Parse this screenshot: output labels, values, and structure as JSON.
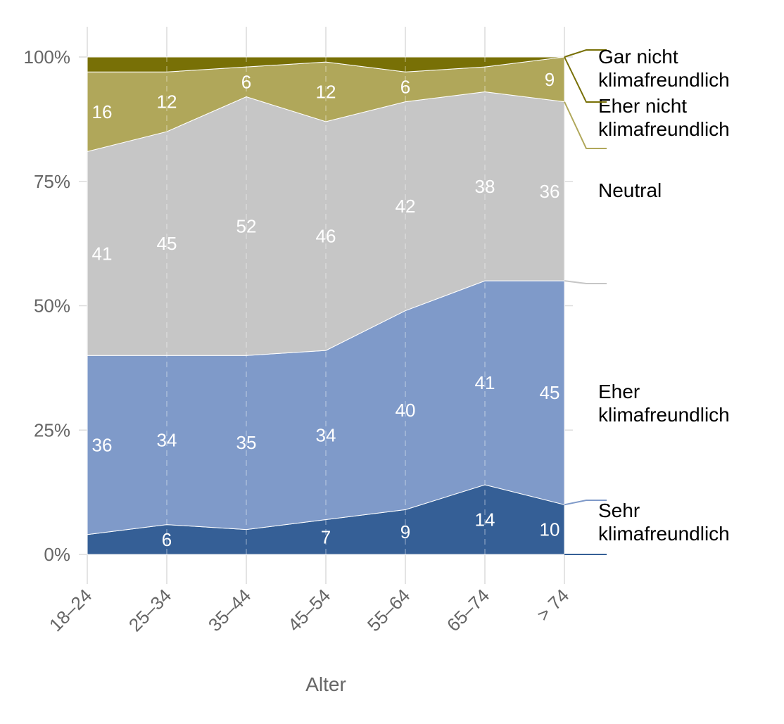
{
  "chart_data": {
    "type": "area",
    "stacked": true,
    "xlabel": "Alter",
    "ylabel": "",
    "categories": [
      "18–24",
      "25–34",
      "35–44",
      "45–54",
      "55–64",
      "65–74",
      "> 74"
    ],
    "ylim": [
      0,
      100
    ],
    "yticks": [
      "0%",
      "25%",
      "50%",
      "75%",
      "100%"
    ],
    "grid": true,
    "legend_placement": "right (direct labels)",
    "series": [
      {
        "name": "Sehr klimafreundlich",
        "lines": [
          "Sehr",
          "klimafreundlich"
        ],
        "color": "#355f96",
        "values": [
          4,
          6,
          5,
          7,
          9,
          14,
          10
        ],
        "labels": [
          "",
          "6",
          "",
          "7",
          "9",
          "14",
          "10"
        ]
      },
      {
        "name": "Eher klimafreundlich",
        "lines": [
          "Eher",
          "klimafreundlich"
        ],
        "color": "#7f9ac9",
        "values": [
          36,
          34,
          35,
          34,
          40,
          41,
          45
        ],
        "labels": [
          "36",
          "34",
          "35",
          "34",
          "40",
          "41",
          "45"
        ]
      },
      {
        "name": "Neutral",
        "lines": [
          "Neutral"
        ],
        "color": "#c6c6c6",
        "values": [
          41,
          45,
          52,
          46,
          42,
          38,
          36
        ],
        "labels": [
          "41",
          "45",
          "52",
          "46",
          "42",
          "38",
          "36"
        ]
      },
      {
        "name": "Eher nicht klimafreundlich",
        "lines": [
          "Eher nicht",
          "klimafreundlich"
        ],
        "color": "#b0a75a",
        "values": [
          16,
          12,
          6,
          12,
          6,
          5,
          9
        ],
        "labels": [
          "16",
          "12",
          "6",
          "12",
          "6",
          "",
          "9"
        ]
      },
      {
        "name": "Gar nicht klimafreundlich",
        "lines": [
          "Gar nicht",
          "klimafreundlich"
        ],
        "color": "#787006",
        "values": [
          3,
          3,
          2,
          2,
          3,
          2,
          1
        ],
        "labels": [
          "",
          "",
          "",
          "",
          "",
          "",
          ""
        ]
      }
    ]
  }
}
